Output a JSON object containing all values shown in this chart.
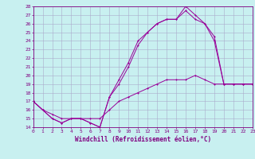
{
  "xlabel": "Windchill (Refroidissement éolien,°C)",
  "ylabel": "",
  "bg_color": "#c8f0f0",
  "line_color": "#990099",
  "xmin": 0,
  "xmax": 23,
  "ymin": 14,
  "ymax": 28,
  "line1_x": [
    0,
    1,
    2,
    3,
    4,
    5,
    6,
    7,
    8,
    9,
    10,
    11,
    12,
    13,
    14,
    15,
    16,
    17,
    18,
    19,
    20,
    21,
    22,
    23
  ],
  "line1_y": [
    17,
    16,
    15,
    14.5,
    15,
    15,
    14.5,
    14,
    17.5,
    19.5,
    21.5,
    24,
    25,
    26,
    26.5,
    26.5,
    28,
    27,
    26,
    24.5,
    19,
    19,
    19,
    19
  ],
  "line2_x": [
    0,
    1,
    2,
    3,
    4,
    5,
    6,
    7,
    8,
    9,
    10,
    11,
    12,
    13,
    14,
    15,
    16,
    17,
    18,
    19,
    20,
    21,
    22,
    23
  ],
  "line2_y": [
    17,
    16,
    15,
    14.5,
    15,
    15,
    14.5,
    14,
    17.5,
    19,
    21,
    23.5,
    25,
    26,
    26.5,
    26.5,
    27.5,
    26.5,
    26,
    24,
    19,
    19,
    19,
    19
  ],
  "line3_x": [
    0,
    1,
    2,
    3,
    4,
    5,
    6,
    7,
    8,
    9,
    10,
    11,
    12,
    13,
    14,
    15,
    16,
    17,
    18,
    19,
    20,
    21,
    22,
    23
  ],
  "line3_y": [
    17,
    16,
    15.5,
    15,
    15,
    15,
    15,
    15,
    16,
    17,
    17.5,
    18,
    18.5,
    19,
    19.5,
    19.5,
    19.5,
    20,
    19.5,
    19,
    19,
    19,
    19,
    19
  ],
  "yticks": [
    14,
    15,
    16,
    17,
    18,
    19,
    20,
    21,
    22,
    23,
    24,
    25,
    26,
    27,
    28
  ],
  "xticks": [
    0,
    1,
    2,
    3,
    4,
    5,
    6,
    7,
    8,
    9,
    10,
    11,
    12,
    13,
    14,
    15,
    16,
    17,
    18,
    19,
    20,
    21,
    22,
    23
  ],
  "font_color": "#800080",
  "grid_color": "#aaaacc",
  "tick_fontsize": 4.5,
  "xlabel_fontsize": 5.5,
  "linewidth": 0.7,
  "markersize": 2.0
}
